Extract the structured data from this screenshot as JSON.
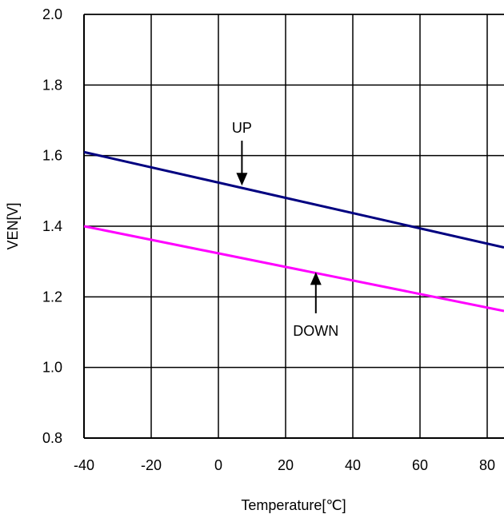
{
  "chart_data": {
    "type": "line",
    "xlabel": "Temperature[℃]",
    "ylabel": "VEN[V]",
    "xlim": [
      -40,
      85
    ],
    "ylim": [
      0.8,
      2.0
    ],
    "x_ticks": [
      -40,
      -20,
      0,
      20,
      40,
      60,
      80
    ],
    "x_tick_labels": [
      "-40",
      "-20",
      "0",
      "20",
      "40",
      "60",
      "80"
    ],
    "y_ticks": [
      0.8,
      1.0,
      1.2,
      1.4,
      1.6,
      1.8,
      2.0
    ],
    "y_tick_labels": [
      "0.8",
      "1.0",
      "1.2",
      "1.4",
      "1.6",
      "1.8",
      "2.0"
    ],
    "grid": true,
    "series": [
      {
        "name": "UP",
        "x": [
          -40,
          85
        ],
        "y": [
          1.61,
          1.34
        ],
        "color": "#000080"
      },
      {
        "name": "DOWN",
        "x": [
          -40,
          85
        ],
        "y": [
          1.4,
          1.16
        ],
        "color": "#ff00ff"
      }
    ],
    "annotations": [
      {
        "text": "UP",
        "target_x": 7,
        "target_y": 1.515,
        "label_x": 7,
        "label_y": 1.665,
        "direction": "down"
      },
      {
        "text": "DOWN",
        "target_x": 29,
        "target_y": 1.27,
        "label_x": 29,
        "label_y": 1.09,
        "direction": "up"
      }
    ]
  }
}
